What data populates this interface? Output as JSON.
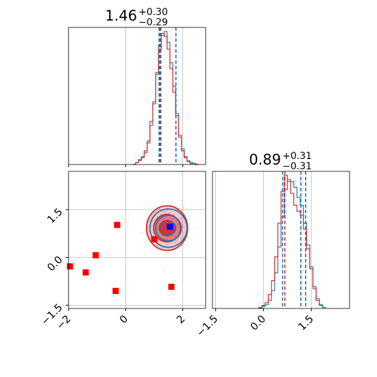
{
  "chart_data": {
    "type": "corner",
    "colors": {
      "model_a": "#1f77b4",
      "model_b": "#d62728",
      "truth_marker": "#0000ff",
      "extra_points": "#ff0000"
    },
    "parameters": [
      {
        "title": {
          "median": "1.46",
          "upper": "+0.30",
          "lower": "−0.29"
        },
        "axis_range": [
          -2.0,
          2.8
        ],
        "ticks": [
          -2,
          0,
          2
        ],
        "tick_labels": [
          "−2",
          "0",
          "2"
        ],
        "quantiles_a": [
          1.17,
          1.23,
          1.76
        ],
        "quantiles_b": [
          1.2,
          1.23,
          1.76
        ]
      },
      {
        "title": {
          "median": "0.89",
          "upper": "+0.31",
          "lower": "−0.31"
        },
        "axis_range": [
          -1.6,
          2.7
        ],
        "ticks": [
          -1.5,
          0.0,
          1.5
        ],
        "tick_labels": [
          "−1.5",
          "0.0",
          "1.5"
        ],
        "quantiles_a": [
          0.6,
          1.17,
          1.32
        ],
        "quantiles_b": [
          0.67,
          1.17,
          1.32
        ]
      }
    ],
    "hist_1d_param1": {
      "bin_centers": [
        0.3,
        0.4,
        0.5,
        0.6,
        0.7,
        0.8,
        0.9,
        1.0,
        1.1,
        1.2,
        1.3,
        1.4,
        1.5,
        1.6,
        1.7,
        1.8,
        1.9,
        2.0,
        2.1,
        2.2,
        2.3,
        2.4,
        2.5
      ],
      "series": [
        {
          "key": "a",
          "counts": [
            0,
            2,
            4,
            7,
            12,
            22,
            40,
            62,
            92,
            118,
            132,
            136,
            125,
            104,
            80,
            52,
            30,
            16,
            8,
            4,
            2,
            1,
            0
          ]
        },
        {
          "key": "b",
          "counts": [
            0,
            2,
            5,
            8,
            14,
            24,
            44,
            64,
            94,
            122,
            134,
            131,
            118,
            98,
            74,
            50,
            28,
            14,
            7,
            3,
            1,
            1,
            0
          ]
        }
      ]
    },
    "hist_1d_param2": {
      "bin_centers": [
        -0.1,
        0.0,
        0.1,
        0.2,
        0.3,
        0.4,
        0.5,
        0.6,
        0.7,
        0.8,
        0.9,
        1.0,
        1.1,
        1.2,
        1.3,
        1.4,
        1.5,
        1.6,
        1.7,
        1.8,
        1.9
      ],
      "series": [
        {
          "key": "a",
          "counts": [
            0,
            2,
            4,
            8,
            18,
            36,
            62,
            92,
            120,
            130,
            128,
            122,
            112,
            104,
            86,
            64,
            42,
            22,
            10,
            4,
            1
          ]
        },
        {
          "key": "b",
          "counts": [
            1,
            3,
            6,
            14,
            28,
            52,
            86,
            118,
            134,
            128,
            116,
            104,
            98,
            94,
            80,
            60,
            40,
            20,
            8,
            3,
            1
          ]
        }
      ]
    },
    "scatter_2d": {
      "x_param": 1,
      "y_param": 2,
      "contours_a": {
        "center": [
          1.5,
          0.92
        ],
        "radii": [
          [
            0.25,
            0.22
          ],
          [
            0.45,
            0.4
          ],
          [
            0.65,
            0.6
          ]
        ]
      },
      "contours_b": {
        "center": [
          1.45,
          0.92
        ],
        "radii": [
          [
            0.27,
            0.24
          ],
          [
            0.47,
            0.43
          ],
          [
            0.72,
            0.7
          ]
        ]
      },
      "truth_point": [
        1.55,
        0.96
      ],
      "extra_points": [
        [
          -1.95,
          -0.28
        ],
        [
          -1.4,
          -0.47
        ],
        [
          -1.05,
          0.07
        ],
        [
          -0.3,
          1.02
        ],
        [
          -0.35,
          -1.05
        ],
        [
          1.0,
          0.57
        ],
        [
          1.6,
          -0.92
        ]
      ]
    }
  }
}
